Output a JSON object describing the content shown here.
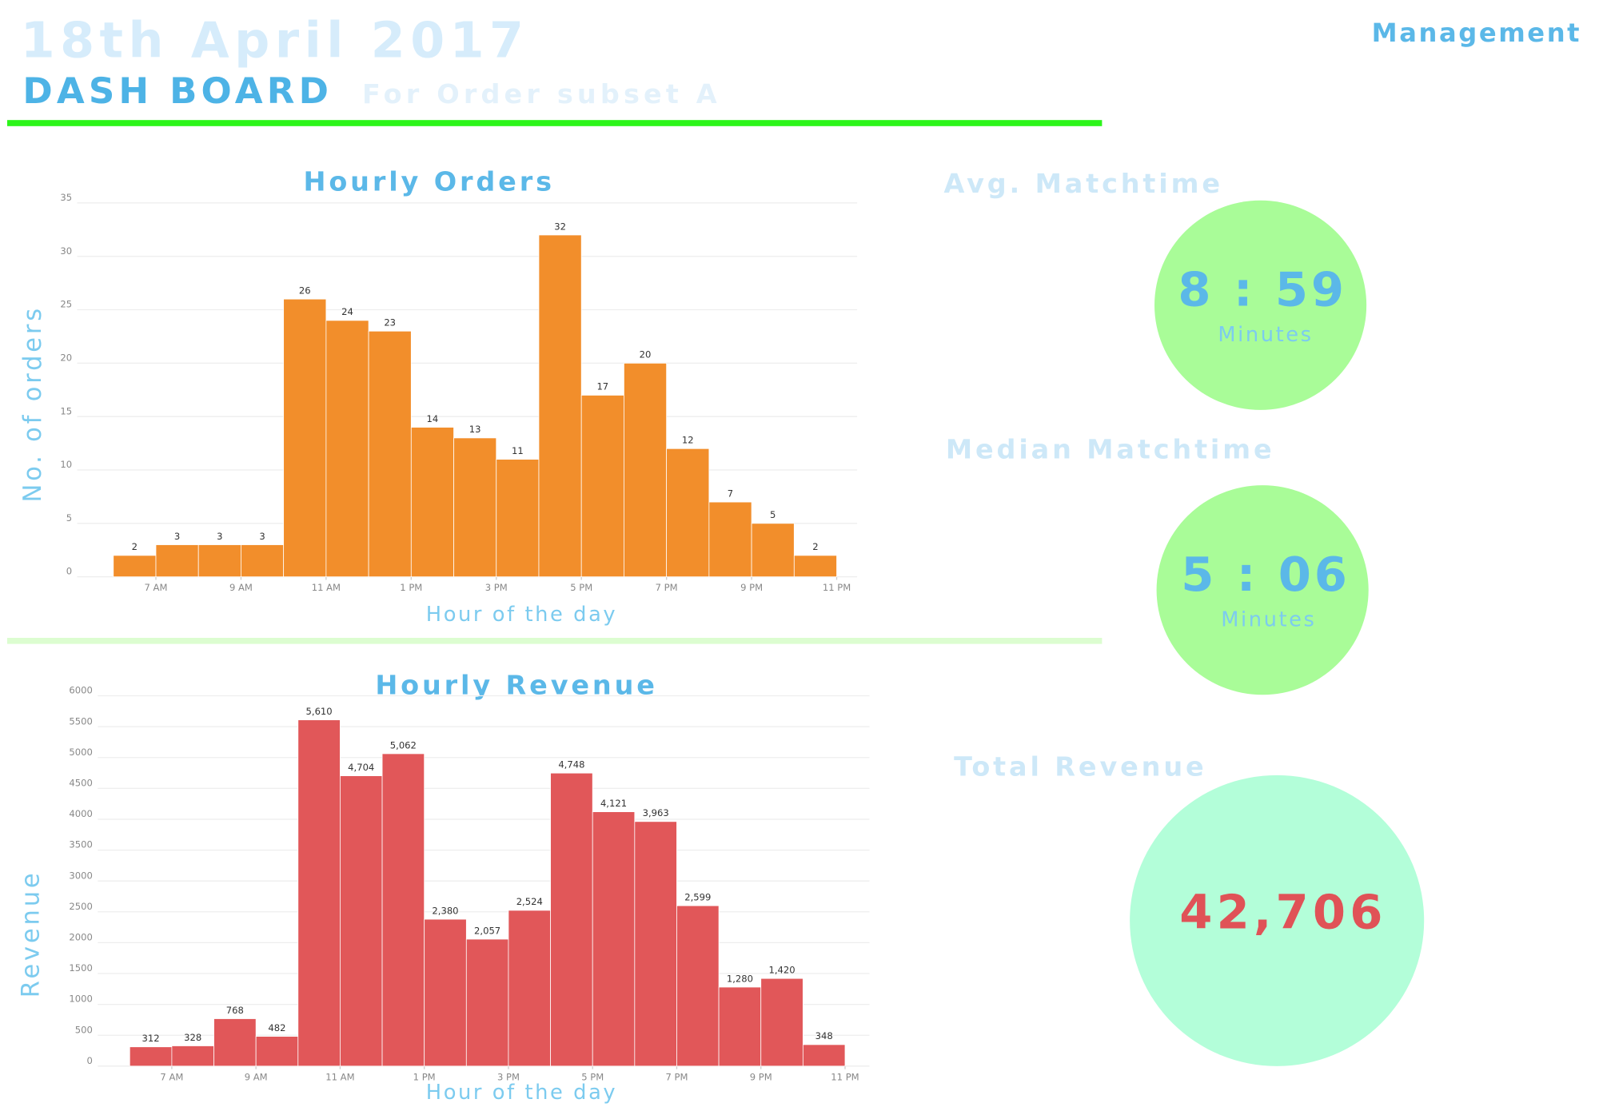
{
  "header": {
    "date": "18th April 2017",
    "title": "DASH BOARD",
    "subtitle": "For Order subset A",
    "role": "Management"
  },
  "kpis": [
    {
      "label": "Avg. Matchtime",
      "value": "8 : 59",
      "unit": "Minutes"
    },
    {
      "label": "Median Matchtime",
      "value": "5 : 06",
      "unit": "Minutes"
    },
    {
      "label": "Total Revenue",
      "value": "42,706"
    }
  ],
  "chart_data": [
    {
      "type": "histogram",
      "title": "Hourly Orders",
      "x_label": "Hour of the day",
      "y_label": "No. of orders",
      "color": "#f28e2b",
      "bins": [
        6,
        7,
        8,
        9,
        10,
        11,
        12,
        13,
        14,
        15,
        16,
        17,
        18,
        19,
        20,
        21,
        22,
        23
      ],
      "values": [
        2,
        3,
        3,
        3,
        26,
        24,
        23,
        14,
        13,
        11,
        32,
        17,
        20,
        12,
        7,
        5,
        2
      ],
      "xlim": [
        5.15,
        23.48
      ],
      "xticks": [
        {
          "value": 7,
          "label": "7 AM"
        },
        {
          "value": 9,
          "label": "9 AM"
        },
        {
          "value": 11,
          "label": "11 AM"
        },
        {
          "value": 13,
          "label": "1 PM"
        },
        {
          "value": 15,
          "label": "3 PM"
        },
        {
          "value": 17,
          "label": "5 PM"
        },
        {
          "value": 19,
          "label": "7 PM"
        },
        {
          "value": 21,
          "label": "9 PM"
        },
        {
          "value": 23,
          "label": "11 PM"
        }
      ],
      "ylim": [
        0,
        35
      ],
      "yticks": [
        0,
        5,
        10,
        15,
        20,
        25,
        30,
        35
      ],
      "grid": true
    },
    {
      "type": "histogram",
      "title": "Hourly Revenue",
      "x_label": "Hour of the day",
      "y_label": "Revenue",
      "color": "#e15759",
      "bins": [
        6,
        7,
        8,
        9,
        10,
        11,
        12,
        13,
        14,
        15,
        16,
        17,
        18,
        19,
        20,
        21,
        22,
        23
      ],
      "values": [
        312,
        328,
        768,
        482,
        5610,
        4704,
        5062,
        2380,
        2057,
        2524,
        4748,
        4121,
        3963,
        2599,
        1280,
        1420,
        348
      ],
      "value_labels": [
        "312",
        "328",
        "768",
        "482",
        "5,610",
        "4,704",
        "5,062",
        "2,380",
        "2,057",
        "2,524",
        "4,748",
        "4,121",
        "3,963",
        "2,599",
        "1,280",
        "1,420",
        "348"
      ],
      "xlim": [
        5.24,
        23.58
      ],
      "xticks": [
        {
          "value": 7,
          "label": "7 AM"
        },
        {
          "value": 9,
          "label": "9 AM"
        },
        {
          "value": 11,
          "label": "11 AM"
        },
        {
          "value": 13,
          "label": "1 PM"
        },
        {
          "value": 15,
          "label": "3 PM"
        },
        {
          "value": 17,
          "label": "5 PM"
        },
        {
          "value": 19,
          "label": "7 PM"
        },
        {
          "value": 21,
          "label": "9 PM"
        },
        {
          "value": 23,
          "label": "11 PM"
        }
      ],
      "ylim": [
        0,
        6000
      ],
      "yticks": [
        0,
        500,
        1000,
        1500,
        2000,
        2500,
        3000,
        3500,
        4000,
        4500,
        5000,
        5500,
        6000
      ],
      "grid": true
    }
  ]
}
